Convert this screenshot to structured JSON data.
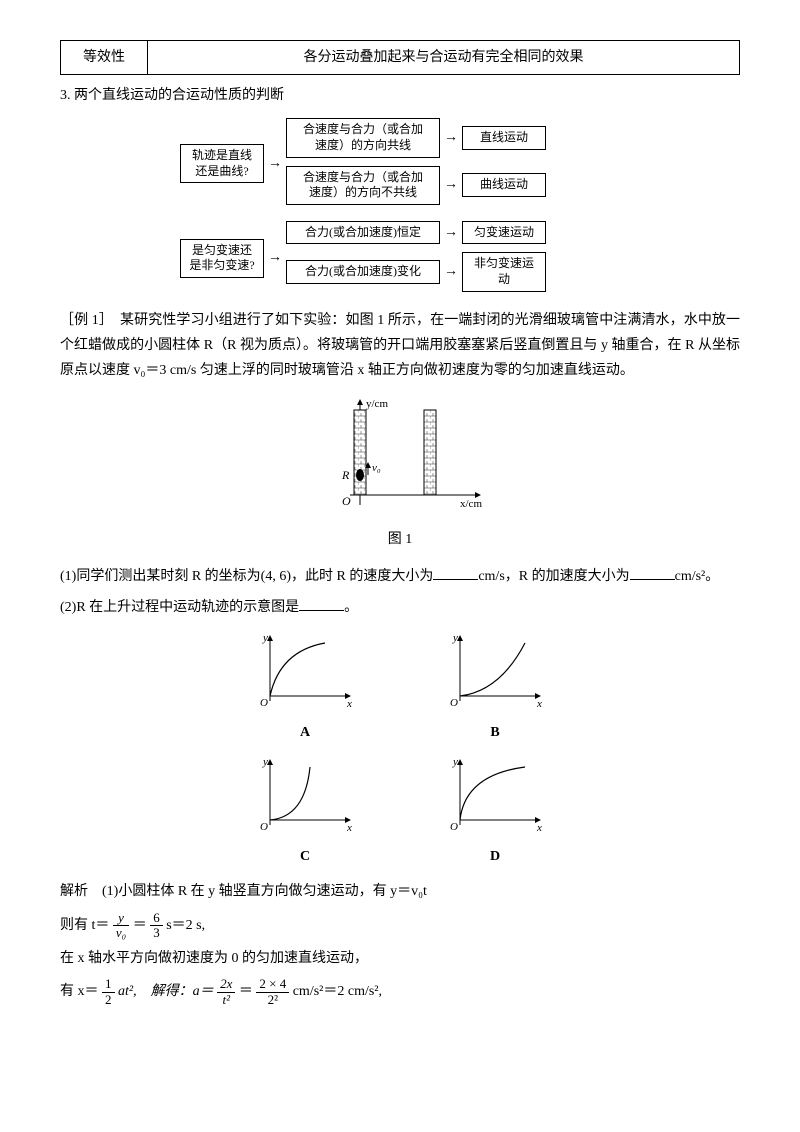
{
  "table": {
    "col1": "等效性",
    "col2": "各分运动叠加起来与合运动有完全相同的效果"
  },
  "title3": "3. 两个直线运动的合运动性质的判断",
  "flow": {
    "d1": "轨迹是直线<br>还是曲线?",
    "c1a": "合速度与合力（或合加<br>速度）的方向共线",
    "r1a": "直线运动",
    "c1b": "合速度与合力（或合加<br>速度）的方向不共线",
    "r1b": "曲线运动",
    "d2": "是匀变速还<br>是非匀变速?",
    "c2a": "合力(或合加速度)恒定",
    "r2a": "匀变速运动",
    "c2b": "合力(或合加速度)变化",
    "r2b": "非匀变速运动"
  },
  "ex1_label": "［例 1］",
  "ex1_text": "　某研究性学习小组进行了如下实验：如图 1 所示，在一端封闭的光滑细玻璃管中注满清水，水中放一个红蜡做成的小圆柱体 R（R 视为质点）。将玻璃管的开口端用胶塞塞紧后竖直倒置且与 y 轴重合，在 R 从坐标原点以速度 v₀＝3 cm/s 匀速上浮的同时玻璃管沿 x 轴正方向做初速度为零的匀加速直线运动。",
  "fig1": {
    "ylabel": "y/cm",
    "xlabel": "x/cm",
    "v0": "v₀",
    "R": "R",
    "O": "O",
    "caption": "图 1"
  },
  "q1": "(1)同学们测出某时刻 R 的坐标为(4, 6)，此时 R 的速度大小为",
  "q1_mid": "cm/s，R 的加速度大小为",
  "q1_end": "cm/s²。",
  "q2": "(2)R 在上升过程中运动轨迹的示意图是",
  "q2_end": "。",
  "curve_labels": {
    "a": "A",
    "b": "B",
    "c": "C",
    "d": "D",
    "x": "x",
    "y": "y",
    "o": "O"
  },
  "sol_label": "解析",
  "sol1": "(1)小圆柱体 R 在 y 轴竖直方向做匀速运动，有 y＝v₀t",
  "sol2_pre": "则有 t＝",
  "sol2_eq1n": "y",
  "sol2_eq1d": "v₀",
  "sol2_mid": "＝",
  "sol2_eq2n": "6",
  "sol2_eq2d": "3",
  "sol2_end": " s＝2 s,",
  "sol3": "在 x 轴水平方向做初速度为 0 的匀加速直线运动，",
  "sol4_pre": "有 x＝",
  "sol4_fr1n": "1",
  "sol4_fr1d": "2",
  "sol4_mid1": "at²,　解得：a＝",
  "sol4_fr2n": "2x",
  "sol4_fr2d": "t²",
  "sol4_mid2": "＝",
  "sol4_fr3n": "2 × 4",
  "sol4_fr3d": "2²",
  "sol4_end": " cm/s²＝2 cm/s²,"
}
